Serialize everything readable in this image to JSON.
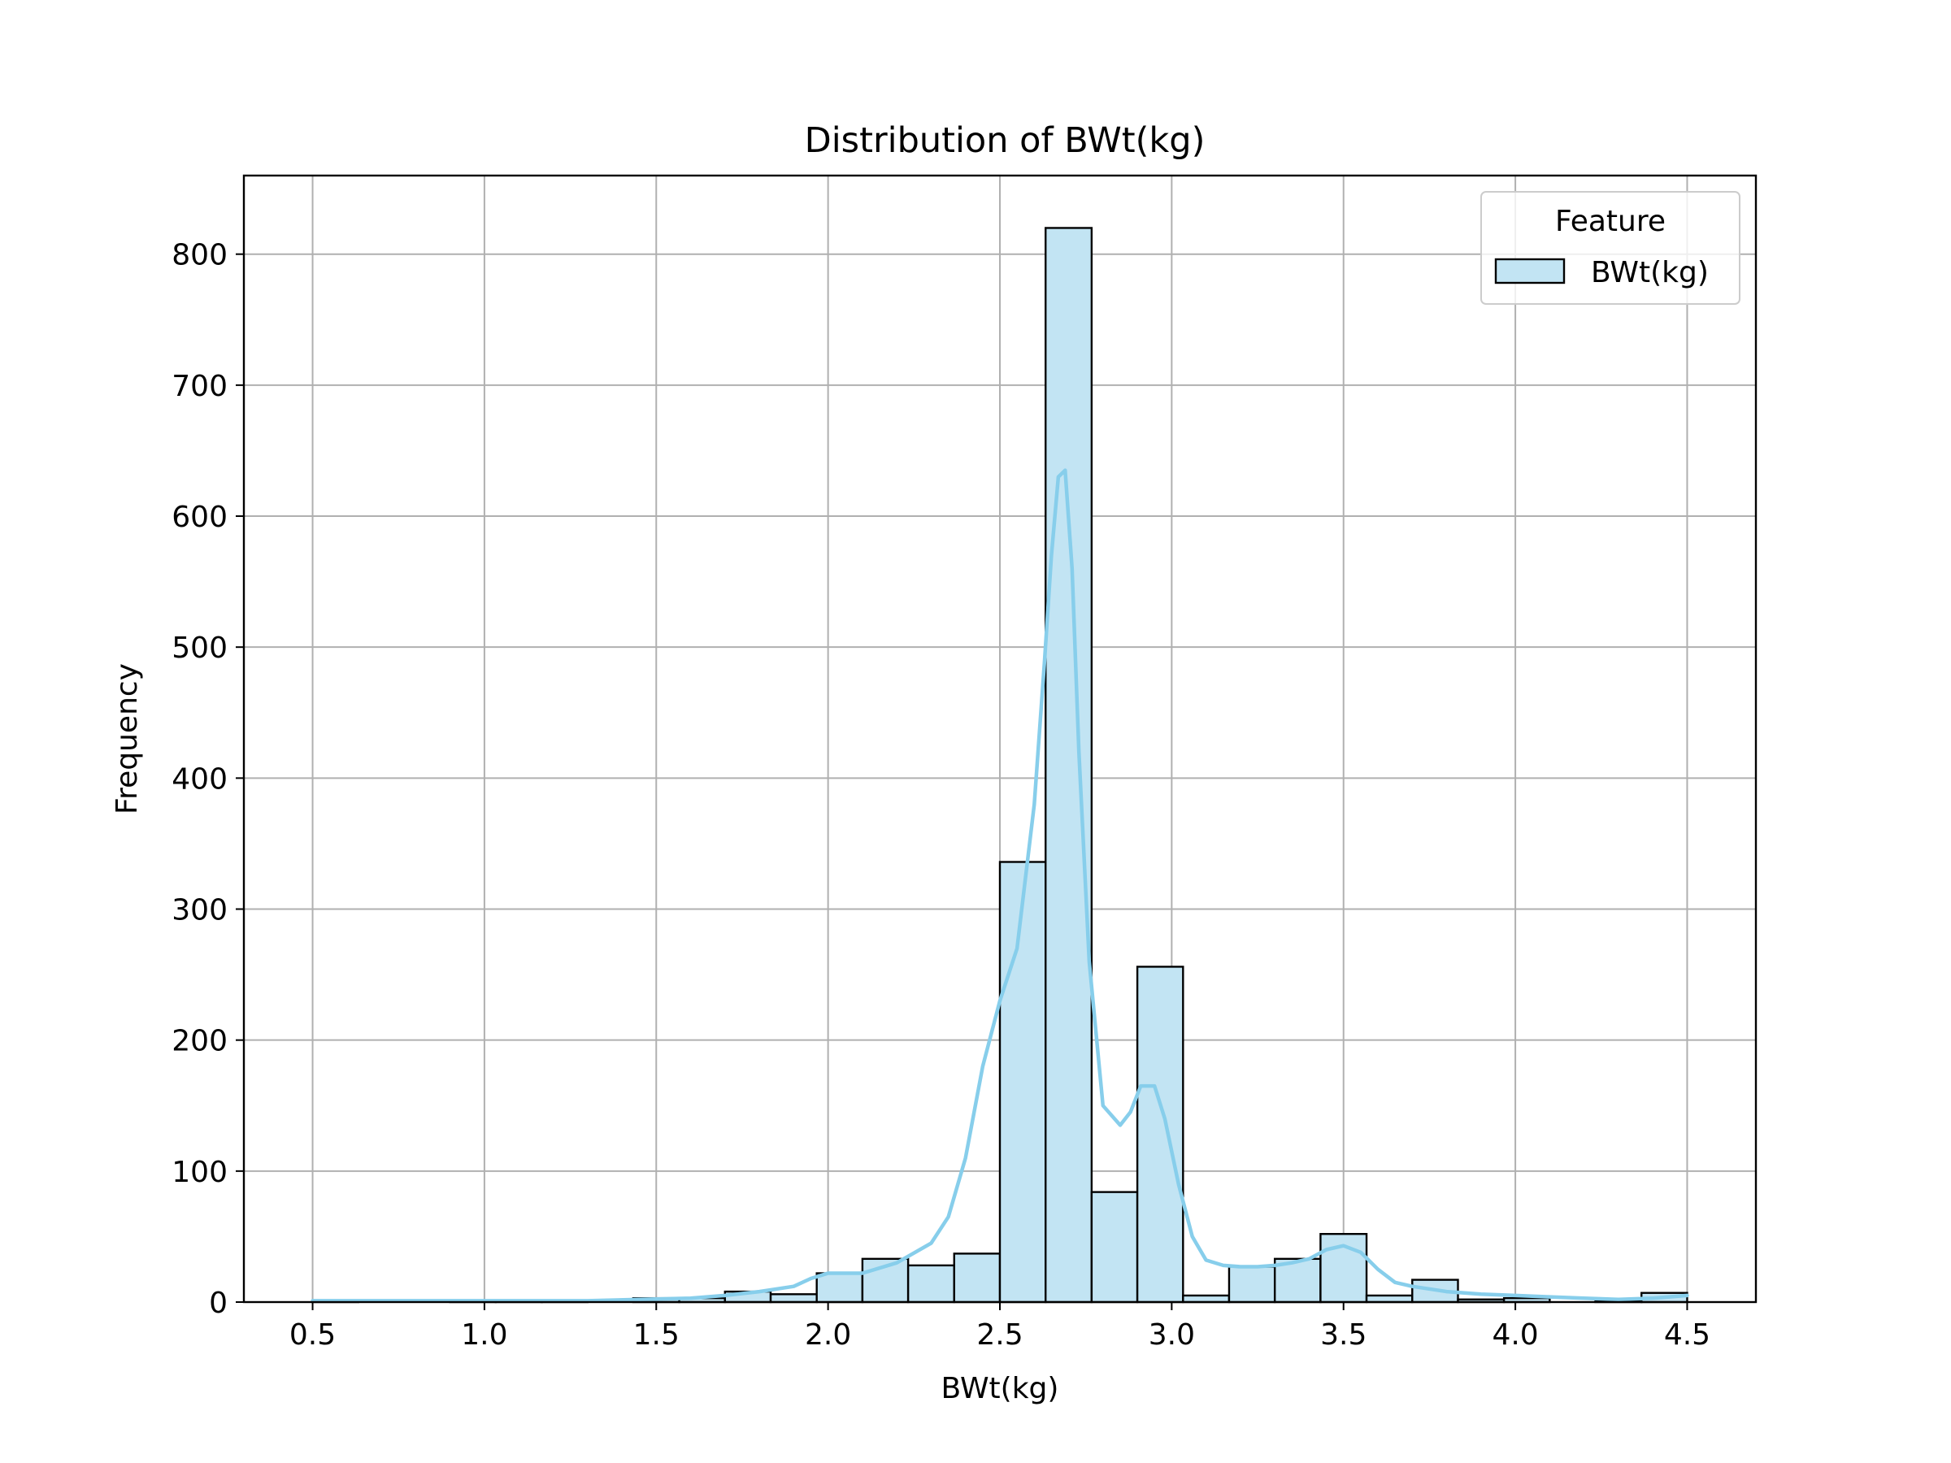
{
  "chart_data": {
    "type": "bar",
    "title": "Distribution of BWt(kg)",
    "xlabel": "BWt(kg)",
    "ylabel": "Frequency",
    "xlim": [
      0.3,
      4.7
    ],
    "ylim": [
      0,
      860
    ],
    "xticks": [
      "0.5",
      "1.0",
      "1.5",
      "2.0",
      "2.5",
      "3.0",
      "3.5",
      "4.0",
      "4.5"
    ],
    "yticks": [
      "0",
      "100",
      "200",
      "300",
      "400",
      "500",
      "600",
      "700",
      "800"
    ],
    "grid": true,
    "legend": {
      "title": "Feature",
      "placement": "top-right",
      "entries": [
        "BWt(kg)"
      ]
    },
    "colors": {
      "bar_fill": "#c2e4f3",
      "bar_edge": "#000000",
      "kde_line": "#87ceeb",
      "grid": "#b0b0b0"
    },
    "histogram": {
      "bin_edges": [
        0.5,
        0.633,
        0.767,
        0.9,
        1.033,
        1.167,
        1.3,
        1.433,
        1.567,
        1.7,
        1.833,
        1.967,
        2.1,
        2.233,
        2.367,
        2.5,
        2.633,
        2.767,
        2.9,
        3.033,
        3.167,
        3.3,
        3.433,
        3.567,
        3.7,
        3.833,
        3.967,
        4.1,
        4.233,
        4.367,
        4.5
      ],
      "counts": [
        1,
        0,
        0,
        1,
        1,
        1,
        0,
        3,
        3,
        8,
        6,
        22,
        33,
        28,
        37,
        336,
        820,
        84,
        256,
        5,
        27,
        33,
        52,
        5,
        17,
        2,
        3,
        0,
        1,
        7
      ]
    },
    "series": [
      {
        "type": "line",
        "x": [
          0.5,
          0.7,
          0.9,
          1.1,
          1.3,
          1.45,
          1.6,
          1.7,
          1.8,
          1.9,
          1.95,
          2.0,
          2.1,
          2.2,
          2.3,
          2.35,
          2.4,
          2.45,
          2.5,
          2.55,
          2.6,
          2.63,
          2.65,
          2.67,
          2.69,
          2.71,
          2.73,
          2.76,
          2.8,
          2.85,
          2.88,
          2.91,
          2.95,
          2.98,
          3.02,
          3.06,
          3.1,
          3.15,
          3.2,
          3.25,
          3.3,
          3.35,
          3.4,
          3.45,
          3.5,
          3.55,
          3.6,
          3.65,
          3.7,
          3.8,
          3.9,
          4.0,
          4.1,
          4.2,
          4.3,
          4.4,
          4.5
        ],
        "values": [
          1,
          1,
          1,
          1,
          1,
          2,
          3,
          5,
          8,
          12,
          18,
          22,
          22,
          30,
          45,
          65,
          110,
          180,
          230,
          270,
          380,
          490,
          570,
          630,
          635,
          560,
          420,
          260,
          150,
          135,
          145,
          165,
          165,
          140,
          90,
          50,
          32,
          28,
          27,
          27,
          28,
          30,
          33,
          40,
          43,
          38,
          25,
          15,
          12,
          8,
          6,
          5,
          4,
          3,
          2,
          3,
          5
        ]
      }
    ]
  }
}
